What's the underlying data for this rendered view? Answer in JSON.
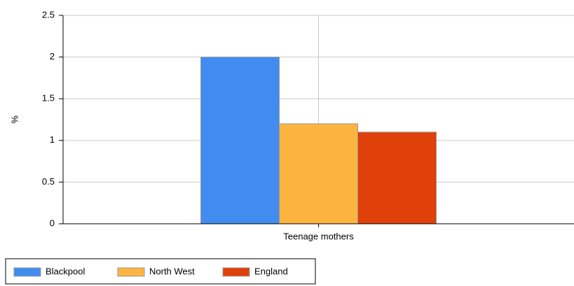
{
  "chart_data": {
    "type": "bar",
    "y_label": "%",
    "categories": [
      "Teenage mothers"
    ],
    "series": [
      {
        "name": "Blackpool",
        "color": "#418cf0",
        "values": [
          2
        ]
      },
      {
        "name": "North West",
        "color": "#fcb441",
        "values": [
          1.2
        ]
      },
      {
        "name": "England",
        "color": "#e0400a",
        "values": [
          1.1
        ]
      }
    ],
    "ylim": [
      0,
      2.5
    ],
    "yticks": [
      0,
      0.5,
      1,
      1.5,
      2,
      2.5
    ],
    "grid": true,
    "legend": "bottom-left"
  }
}
